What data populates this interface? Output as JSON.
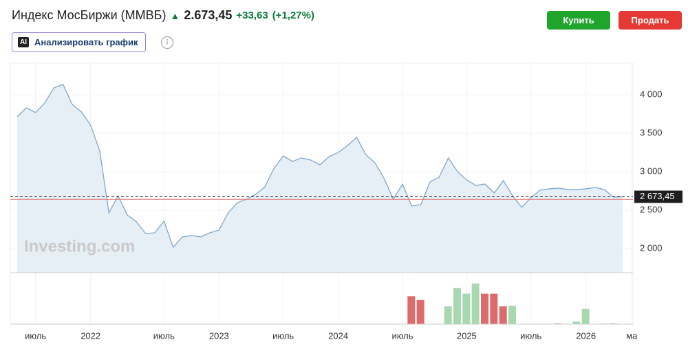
{
  "header": {
    "title": "Индекс МосБиржи (ММВБ)",
    "price": "2.673,45",
    "change": "+33,63",
    "change_pct": "(+1,27%)",
    "ai_badge": "AI",
    "analyze": "Анализировать график",
    "buy": "Купить",
    "sell": "Продать"
  },
  "chart_data": {
    "type": "area",
    "watermark": "Investing.com",
    "color": "#7fa8c9",
    "fill": "#e6eef6",
    "categories": [
      null,
      null,
      "июль",
      null,
      null,
      null,
      null,
      null,
      "2022",
      null,
      null,
      null,
      null,
      null,
      null,
      null,
      "июль",
      null,
      null,
      null,
      null,
      null,
      "2023",
      null,
      null,
      null,
      null,
      null,
      null,
      "июль",
      null,
      null,
      null,
      null,
      null,
      "2024",
      null,
      null,
      null,
      null,
      null,
      null,
      "июль",
      null,
      null,
      null,
      null,
      null,
      null,
      "2025",
      null,
      null,
      null,
      null,
      null,
      null,
      "июль",
      null,
      null,
      null,
      null,
      null,
      "2026",
      null,
      null,
      null,
      null,
      "ма"
    ],
    "values": [
      3714,
      3830,
      3768,
      3893,
      4090,
      4134,
      3875,
      3777,
      3607,
      3268,
      2464,
      2687,
      2437,
      2348,
      2196,
      2205,
      2357,
      2018,
      2152,
      2170,
      2152,
      2205,
      2241,
      2464,
      2598,
      2643,
      2705,
      2804,
      3045,
      3205,
      3134,
      3179,
      3152,
      3089,
      3196,
      3250,
      3339,
      3446,
      3223,
      3116,
      2911,
      2643,
      2839,
      2554,
      2571,
      2866,
      2929,
      3179,
      3000,
      2893,
      2821,
      2839,
      2723,
      2884,
      2687,
      2536,
      2661,
      2759,
      2777,
      2786,
      2768,
      2768,
      2777,
      2795,
      2768,
      2670,
      2673.45,
      null
    ],
    "ylim": [
      1687,
      4384
    ],
    "yticks": [
      {
        "value": 2000,
        "label": "2 000"
      },
      {
        "value": 2500,
        "label": "2 500"
      },
      {
        "value": 3000,
        "label": "3 000"
      },
      {
        "value": 3500,
        "label": "3 500"
      },
      {
        "value": 4000,
        "label": "4 000"
      }
    ],
    "last_price": {
      "value": 2673.45,
      "label": "2 673,45"
    },
    "previous_close": 2639.82,
    "previous_close_color": "#e57373",
    "volume": {
      "ylim": [
        0,
        80
      ],
      "values": [
        null,
        null,
        null,
        null,
        null,
        null,
        null,
        null,
        null,
        null,
        null,
        null,
        null,
        null,
        null,
        null,
        null,
        null,
        null,
        null,
        null,
        null,
        null,
        null,
        null,
        null,
        null,
        null,
        null,
        null,
        null,
        null,
        null,
        null,
        null,
        null,
        null,
        null,
        null,
        null,
        null,
        null,
        null,
        44,
        38,
        null,
        null,
        28,
        57,
        48,
        64,
        48,
        48,
        28,
        29,
        null,
        null,
        null,
        null,
        1,
        null,
        4,
        24,
        null,
        1,
        1,
        null,
        null
      ],
      "colors": [
        null,
        null,
        null,
        null,
        null,
        null,
        null,
        null,
        null,
        null,
        null,
        null,
        null,
        null,
        null,
        null,
        null,
        null,
        null,
        null,
        null,
        null,
        null,
        null,
        null,
        null,
        null,
        null,
        null,
        null,
        null,
        null,
        null,
        null,
        null,
        null,
        null,
        null,
        null,
        null,
        null,
        null,
        null,
        "#dd6b6b",
        "#dd6b6b",
        null,
        null,
        "#a8d8b0",
        "#a8d8b0",
        "#a8d8b0",
        "#a8d8b0",
        "#dd6b6b",
        "#dd6b6b",
        "#dd6b6b",
        "#a8d8b0",
        null,
        null,
        null,
        null,
        "#dd6b6b",
        null,
        "#a8d8b0",
        "#a8d8b0",
        null,
        "#a8d8b0",
        "#dd6b6b",
        null,
        null
      ]
    }
  }
}
